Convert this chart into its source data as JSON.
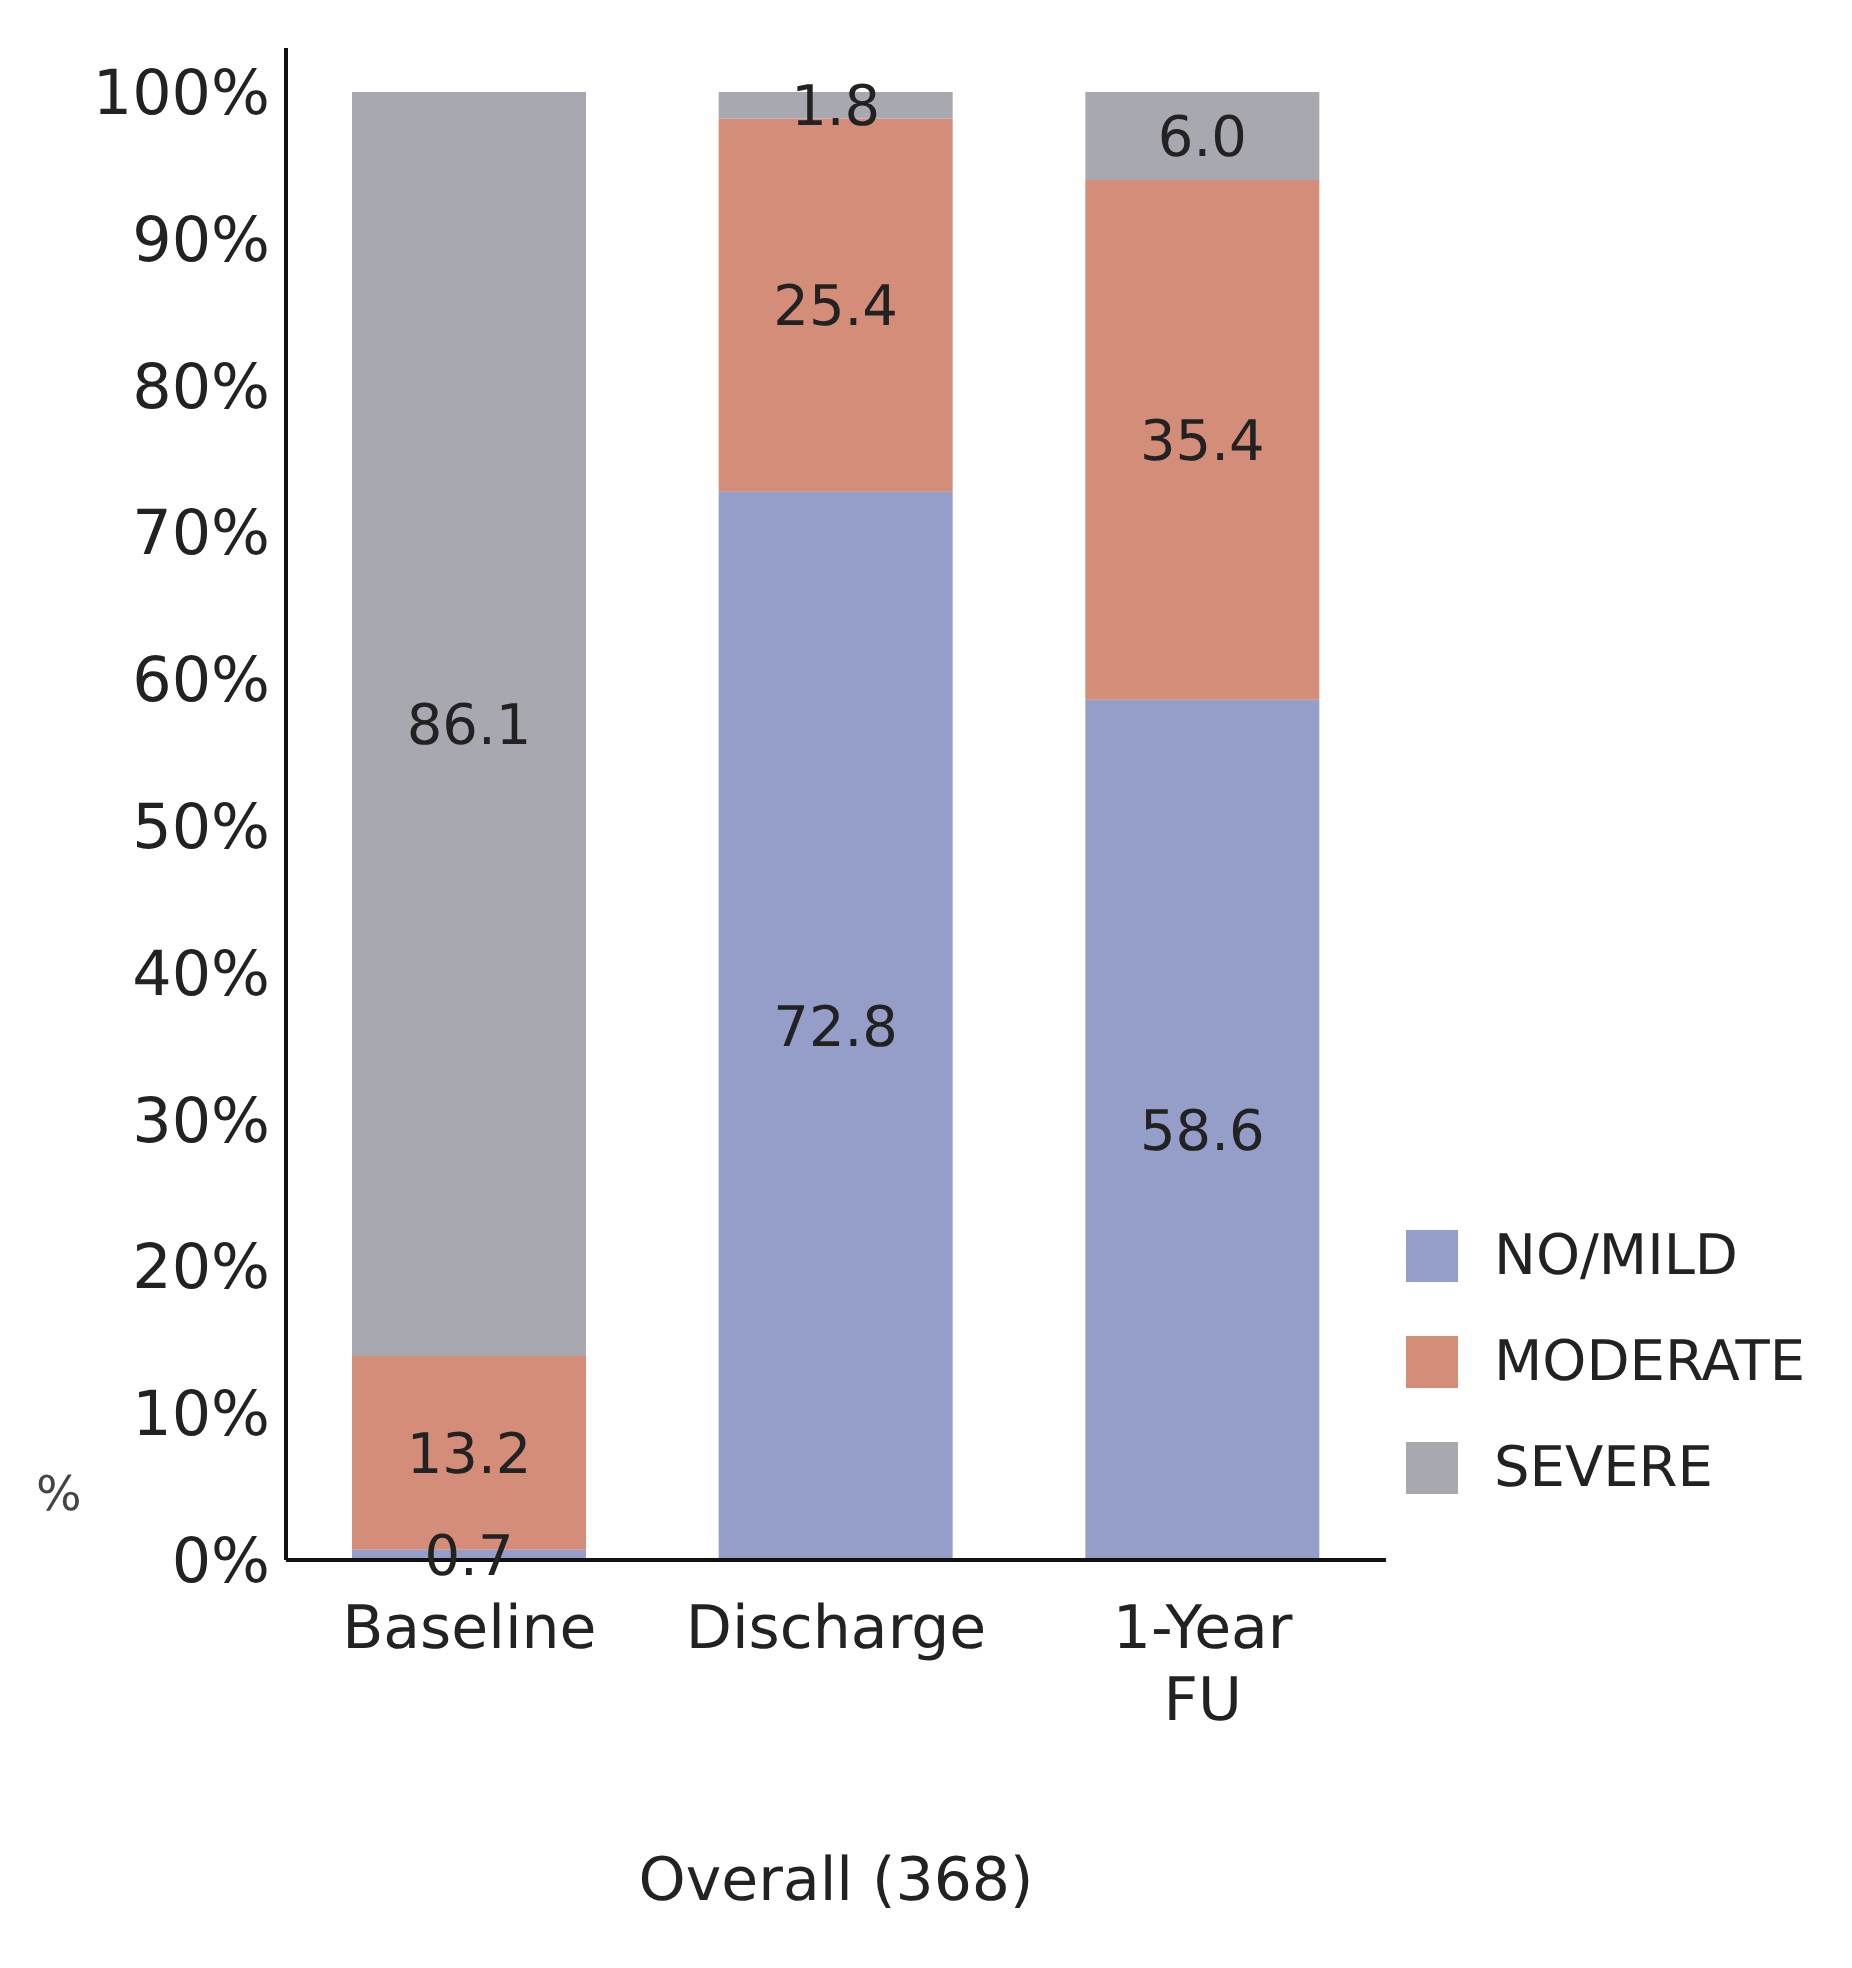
{
  "chart_data": {
    "type": "bar",
    "stacked": true,
    "xlabel": "Overall (368)",
    "ylabel": "%",
    "categories": [
      "Baseline",
      "Discharge",
      "1-Year FU"
    ],
    "series": [
      {
        "name": "NO/MILD",
        "color": "#959dc9",
        "values": [
          0.7,
          72.8,
          58.6
        ],
        "value_labels": [
          "0.7",
          "72.8",
          "58.6"
        ]
      },
      {
        "name": "MODERATE",
        "color": "#d48d78",
        "values": [
          13.2,
          25.4,
          35.4
        ],
        "value_labels": [
          "13.2",
          "25.4",
          "35.4"
        ]
      },
      {
        "name": "SEVERE",
        "color": "#a8a8b0",
        "values": [
          86.1,
          1.8,
          6.0
        ],
        "value_labels": [
          "86.1",
          "1.8",
          "6.0"
        ]
      }
    ],
    "ylim": [
      0,
      103
    ],
    "yticks": [
      {
        "value": 0,
        "label": "0%"
      },
      {
        "value": 10,
        "label": "10%"
      },
      {
        "value": 20,
        "label": "20%"
      },
      {
        "value": 30,
        "label": "30%"
      },
      {
        "value": 40,
        "label": "40%"
      },
      {
        "value": 50,
        "label": "50%"
      },
      {
        "value": 60,
        "label": "60%"
      },
      {
        "value": 70,
        "label": "70%"
      },
      {
        "value": 80,
        "label": "80%"
      },
      {
        "value": 90,
        "label": "90%"
      },
      {
        "value": 100,
        "label": "100%"
      }
    ],
    "legend": "bottom right"
  }
}
